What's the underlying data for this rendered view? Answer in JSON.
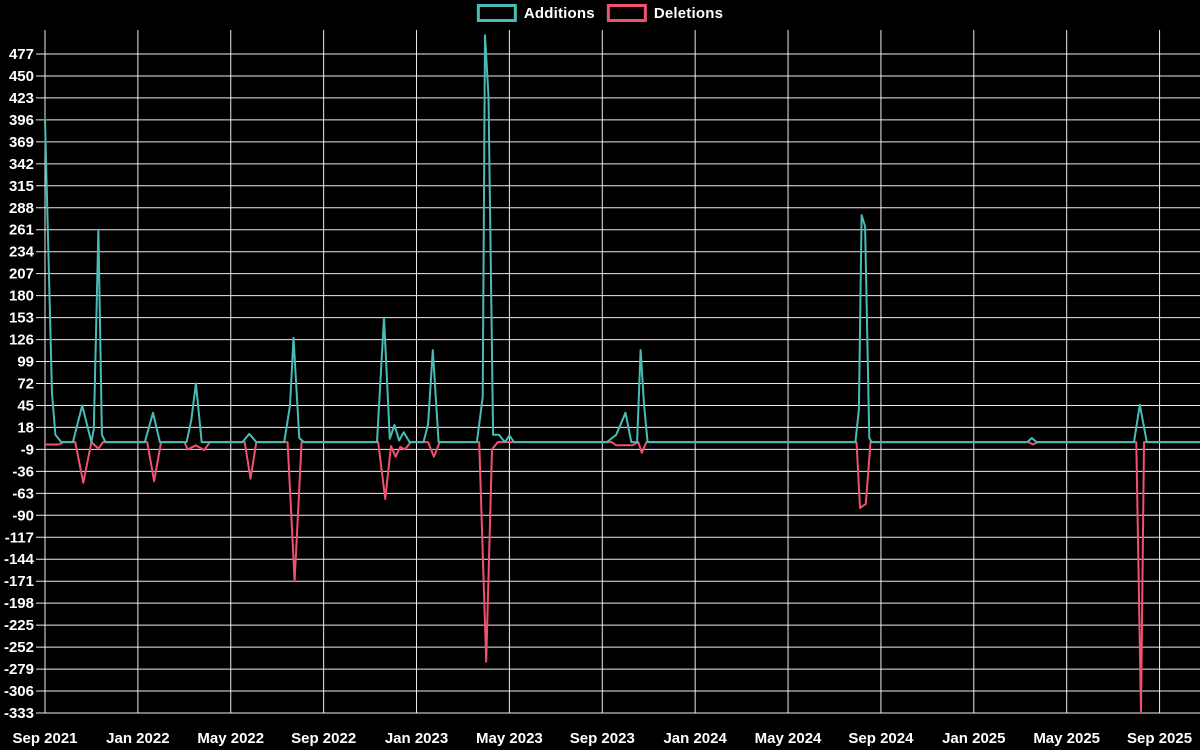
{
  "legend": {
    "items": [
      {
        "label": "Additions",
        "color": "#48bcb4"
      },
      {
        "label": "Deletions",
        "color": "#f0516f"
      }
    ]
  },
  "colors": {
    "background": "#000000",
    "grid": "#ffffff",
    "text": "#ffffff",
    "additions": "#48bcb4",
    "deletions": "#f0516f"
  },
  "chart_data": {
    "type": "line",
    "title": "",
    "xlabel": "",
    "ylabel": "",
    "grid": true,
    "legend_position": "top-center",
    "x_axis": {
      "unit": "months since Sep 2021 (weekly data)",
      "labels": [
        "Sep 2021",
        "Jan 2022",
        "May 2022",
        "Sep 2022",
        "Jan 2023",
        "May 2023",
        "Sep 2023",
        "Jan 2024",
        "May 2024",
        "Sep 2024",
        "Jan 2025",
        "May 2025",
        "Sep 2025"
      ],
      "label_months": [
        0,
        4,
        8,
        12,
        16,
        20,
        24,
        28,
        32,
        36,
        40,
        44,
        48
      ]
    },
    "y_axis": {
      "ticks": [
        477,
        450,
        423,
        396,
        369,
        342,
        315,
        288,
        261,
        234,
        207,
        180,
        153,
        126,
        99,
        72,
        45,
        18,
        -9,
        -36,
        -63,
        -90,
        -117,
        -144,
        -171,
        -198,
        -225,
        -252,
        -279,
        -306,
        -333
      ],
      "min": -333,
      "max": 477,
      "step": 27
    },
    "series": [
      {
        "name": "Additions",
        "color": "#48bcb4",
        "points": [
          [
            0,
            396
          ],
          [
            0.3,
            60
          ],
          [
            0.45,
            9
          ],
          [
            0.7,
            0
          ],
          [
            1.2,
            0
          ],
          [
            1.6,
            45
          ],
          [
            2.0,
            0
          ],
          [
            2.1,
            16
          ],
          [
            2.3,
            261
          ],
          [
            2.45,
            9
          ],
          [
            2.6,
            0
          ],
          [
            4.3,
            0
          ],
          [
            4.65,
            36
          ],
          [
            4.95,
            0
          ],
          [
            6.1,
            0
          ],
          [
            6.3,
            27
          ],
          [
            6.5,
            72
          ],
          [
            6.75,
            0
          ],
          [
            8.5,
            0
          ],
          [
            8.8,
            10
          ],
          [
            9.1,
            0
          ],
          [
            10.3,
            0
          ],
          [
            10.55,
            45
          ],
          [
            10.7,
            128
          ],
          [
            10.95,
            5
          ],
          [
            11.15,
            0
          ],
          [
            14.3,
            0
          ],
          [
            14.6,
            153
          ],
          [
            14.85,
            4
          ],
          [
            15.05,
            21
          ],
          [
            15.25,
            2
          ],
          [
            15.45,
            12
          ],
          [
            15.7,
            0
          ],
          [
            16.3,
            0
          ],
          [
            16.5,
            22
          ],
          [
            16.7,
            113
          ],
          [
            16.95,
            0
          ],
          [
            18.6,
            0
          ],
          [
            18.85,
            55
          ],
          [
            18.95,
            500
          ],
          [
            19.1,
            425
          ],
          [
            19.3,
            9
          ],
          [
            19.55,
            9
          ],
          [
            19.8,
            0
          ],
          [
            20.0,
            8
          ],
          [
            20.2,
            0
          ],
          [
            24.2,
            0
          ],
          [
            24.6,
            9
          ],
          [
            25.0,
            36
          ],
          [
            25.25,
            0
          ],
          [
            25.5,
            0
          ],
          [
            25.65,
            113
          ],
          [
            25.8,
            45
          ],
          [
            25.95,
            0
          ],
          [
            34.9,
            0
          ],
          [
            35.05,
            40
          ],
          [
            35.17,
            279
          ],
          [
            35.32,
            265
          ],
          [
            35.5,
            5
          ],
          [
            35.6,
            0
          ],
          [
            42.3,
            0
          ],
          [
            42.5,
            5
          ],
          [
            42.7,
            0
          ],
          [
            46.9,
            0
          ],
          [
            47.15,
            46
          ],
          [
            47.45,
            0
          ],
          [
            49.8,
            0
          ]
        ]
      },
      {
        "name": "Deletions",
        "color": "#f0516f",
        "points": [
          [
            0,
            -3
          ],
          [
            0.6,
            -3
          ],
          [
            0.8,
            0
          ],
          [
            1.3,
            0
          ],
          [
            1.65,
            -50
          ],
          [
            2.0,
            0
          ],
          [
            2.3,
            -8
          ],
          [
            2.5,
            0
          ],
          [
            4.4,
            0
          ],
          [
            4.7,
            -48
          ],
          [
            5.0,
            0
          ],
          [
            6.0,
            0
          ],
          [
            6.15,
            -9
          ],
          [
            6.5,
            -4
          ],
          [
            6.85,
            -10
          ],
          [
            7.1,
            0
          ],
          [
            8.6,
            0
          ],
          [
            8.85,
            -45
          ],
          [
            9.1,
            0
          ],
          [
            10.45,
            0
          ],
          [
            10.75,
            -171
          ],
          [
            11.05,
            0
          ],
          [
            14.35,
            0
          ],
          [
            14.65,
            -70
          ],
          [
            14.9,
            -5
          ],
          [
            15.1,
            -18
          ],
          [
            15.3,
            -6
          ],
          [
            15.5,
            -9
          ],
          [
            15.75,
            0
          ],
          [
            16.5,
            0
          ],
          [
            16.75,
            -18
          ],
          [
            17.0,
            0
          ],
          [
            18.7,
            0
          ],
          [
            19.0,
            -270
          ],
          [
            19.25,
            -9
          ],
          [
            19.5,
            0
          ],
          [
            24.4,
            0
          ],
          [
            24.6,
            -4
          ],
          [
            25.3,
            -4
          ],
          [
            25.55,
            0
          ],
          [
            25.7,
            -13
          ],
          [
            25.9,
            0
          ],
          [
            34.95,
            0
          ],
          [
            35.1,
            -81
          ],
          [
            35.35,
            -76
          ],
          [
            35.55,
            0
          ],
          [
            42.35,
            0
          ],
          [
            42.55,
            -3
          ],
          [
            42.75,
            0
          ],
          [
            47.0,
            0
          ],
          [
            47.2,
            -333
          ],
          [
            47.33,
            0
          ],
          [
            49.8,
            0
          ]
        ]
      }
    ]
  }
}
